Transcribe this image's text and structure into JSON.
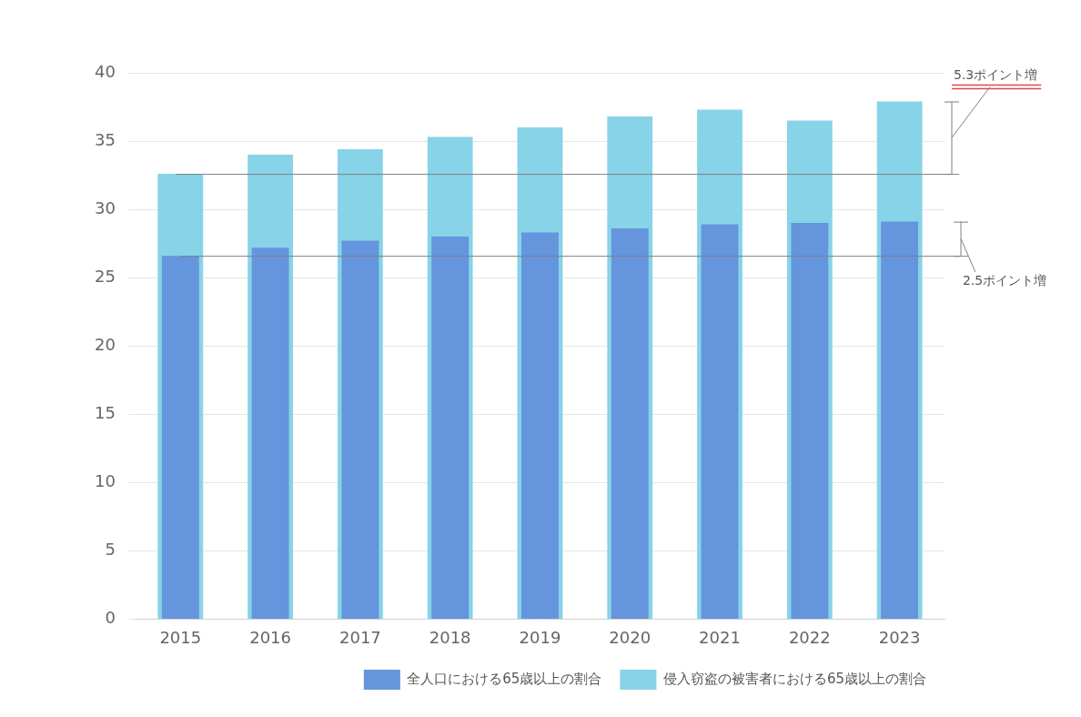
{
  "chart_data": {
    "type": "bar",
    "categories": [
      "2015",
      "2016",
      "2017",
      "2018",
      "2019",
      "2020",
      "2021",
      "2022",
      "2023"
    ],
    "series": [
      {
        "name": "侵入窃盗の被害者における65歳以上の割合",
        "color": "#87d3e8",
        "values": [
          32.6,
          34.0,
          34.4,
          35.3,
          36.0,
          36.8,
          37.3,
          36.5,
          37.9
        ]
      },
      {
        "name": "全人口における65歳以上の割合",
        "color": "#6495dd",
        "values": [
          26.6,
          27.2,
          27.7,
          28.0,
          28.3,
          28.6,
          28.9,
          29.0,
          29.1
        ]
      }
    ],
    "annotations": [
      {
        "text": "5.3ポイント増",
        "series": "侵入窃盗の被害者における65歳以上の割合",
        "from": "2015",
        "to": "2023",
        "color": "#e0474c"
      },
      {
        "text": "2.5ポイント増",
        "series": "全人口における65歳以上の割合",
        "from": "2015",
        "to": "2023"
      }
    ],
    "ylim": [
      0,
      40
    ],
    "yticks": [
      0,
      5,
      10,
      15,
      20,
      25,
      30,
      35,
      40
    ],
    "grid": true,
    "legend": "lower right"
  }
}
